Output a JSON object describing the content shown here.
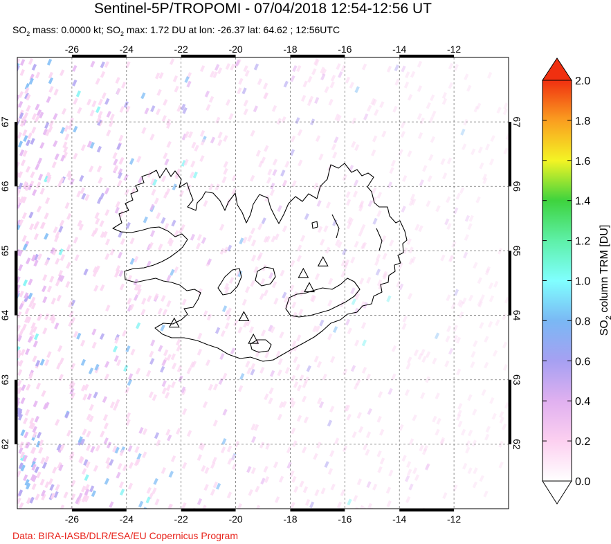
{
  "header": {
    "title": "Sentinel-5P/TROPOMI - 07/04/2018 12:54-12:56 UT",
    "subtitle_parts": [
      "SO",
      "2",
      " mass: 0.0000 kt; SO",
      "2",
      " max: 1.72 DU at lon: -26.37 lat: 64.62 ; 12:56UTC"
    ]
  },
  "footer": {
    "credit": "Data: BIRA-IASB/DLR/ESA/EU Copernicus Program"
  },
  "map": {
    "lon_range": [
      -28.0,
      -10.0
    ],
    "lat_range": [
      61.0,
      68.0
    ],
    "lon_ticks": [
      "-26",
      "-24",
      "-22",
      "-20",
      "-18",
      "-16",
      "-14",
      "-12"
    ],
    "lon_tick_values": [
      -26,
      -24,
      -22,
      -20,
      -18,
      -16,
      -14,
      -12
    ],
    "lat_ticks": [
      "62",
      "63",
      "64",
      "65",
      "66",
      "67"
    ],
    "lat_tick_values": [
      62,
      63,
      64,
      65,
      66,
      67
    ],
    "grid": "dashed",
    "volcano_markers": [
      {
        "lon": -22.25,
        "lat": 63.88
      },
      {
        "lon": -19.7,
        "lat": 63.98
      },
      {
        "lon": -19.35,
        "lat": 63.63
      },
      {
        "lon": -17.52,
        "lat": 64.65
      },
      {
        "lon": -17.3,
        "lat": 64.43
      },
      {
        "lon": -16.8,
        "lat": 64.83
      }
    ]
  },
  "colorbar": {
    "label_parts": [
      "SO",
      "2",
      " column TRM [DU]"
    ],
    "ticks": [
      "0.0",
      "0.2",
      "0.4",
      "0.6",
      "0.8",
      "1.0",
      "1.2",
      "1.4",
      "1.6",
      "1.8",
      "2.0"
    ],
    "tick_values": [
      0,
      0.2,
      0.4,
      0.6,
      0.8,
      1.0,
      1.2,
      1.4,
      1.6,
      1.8,
      2.0
    ],
    "min": 0.0,
    "max": 2.0,
    "colors": [
      "#ffffff",
      "#fcd0f0",
      "#e0b0f0",
      "#a6a0f2",
      "#7ab8f4",
      "#80ffff",
      "#5ef0a8",
      "#3ed33e",
      "#f4f424",
      "#fa9e20",
      "#f03010"
    ]
  }
}
